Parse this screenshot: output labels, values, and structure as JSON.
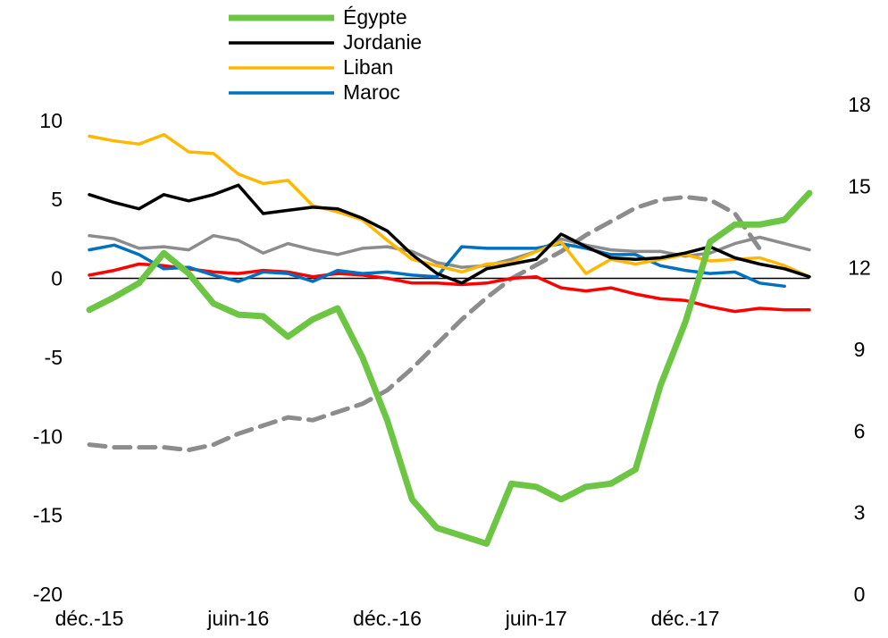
{
  "chart_data": {
    "type": "line",
    "categories": [
      "déc.-15",
      null,
      null,
      null,
      null,
      null,
      "juin-16",
      null,
      null,
      null,
      null,
      null,
      "déc.-16",
      null,
      null,
      null,
      null,
      null,
      "juin-17",
      null,
      null,
      null,
      null,
      null,
      "déc.-17",
      null,
      null,
      null,
      null,
      null
    ],
    "ylim": [
      -20,
      11
    ],
    "yticks": [
      10,
      5,
      0,
      -5,
      -10,
      -15,
      -20
    ],
    "y2lim": [
      0,
      18
    ],
    "y2ticks": [
      18,
      15,
      12,
      9,
      6,
      3,
      0
    ],
    "series": [
      {
        "name": "Égypte",
        "color": "#6cc644",
        "values": [
          -2.0,
          -1.2,
          -0.3,
          1.6,
          0.3,
          -1.6,
          -2.3,
          -2.4,
          -3.7,
          -2.6,
          -1.9,
          -5.0,
          -9.0,
          -14.0,
          -15.8,
          -16.3,
          -16.8,
          -13.0,
          -13.2,
          -14.0,
          -13.2,
          -13.0,
          -12.1,
          -6.8,
          -2.8,
          2.3,
          3.4,
          3.4,
          3.7,
          5.4
        ]
      },
      {
        "name": "Jordanie",
        "color": "#000000",
        "values": [
          5.3,
          4.8,
          4.4,
          5.3,
          4.9,
          5.3,
          5.9,
          4.1,
          4.3,
          4.5,
          4.4,
          3.8,
          3.0,
          1.5,
          0.3,
          -0.3,
          0.6,
          0.9,
          1.2,
          2.8,
          2.0,
          1.3,
          1.2,
          1.3,
          1.6,
          2.0,
          1.3,
          0.9,
          0.6,
          0.1
        ]
      },
      {
        "name": "Liban",
        "color": "#ffb700",
        "values": [
          9.0,
          8.7,
          8.5,
          9.1,
          8.0,
          7.9,
          6.6,
          6.0,
          6.2,
          4.6,
          4.2,
          3.7,
          2.4,
          1.2,
          0.8,
          0.4,
          0.9,
          1.0,
          1.7,
          2.3,
          0.3,
          1.2,
          0.9,
          1.2,
          1.5,
          1.1,
          1.2,
          1.3,
          0.8,
          0.1
        ]
      },
      {
        "name": "Maroc",
        "color": "#0070c0",
        "values": [
          1.8,
          2.1,
          1.5,
          0.6,
          0.7,
          0.2,
          -0.2,
          0.4,
          0.3,
          -0.2,
          0.5,
          0.3,
          0.4,
          0.2,
          0.1,
          2.0,
          1.9,
          1.9,
          1.9,
          2.2,
          1.9,
          1.5,
          1.5,
          0.8,
          0.5,
          0.3,
          0.4,
          -0.3,
          -0.5,
          null
        ]
      },
      {
        "color": "#8c8c8c",
        "values": [
          2.7,
          2.5,
          1.9,
          2.0,
          1.8,
          2.7,
          2.4,
          1.6,
          2.2,
          1.8,
          1.5,
          1.9,
          2.0,
          1.7,
          1.0,
          0.7,
          0.8,
          1.2,
          1.7,
          2.5,
          2.1,
          1.8,
          1.7,
          1.7,
          1.4,
          1.6,
          2.2,
          2.6,
          2.2,
          1.8
        ]
      },
      {
        "color": "#ff0000",
        "values": [
          0.2,
          0.5,
          0.9,
          0.8,
          0.6,
          0.4,
          0.3,
          0.5,
          0.4,
          0.1,
          0.3,
          0.2,
          0.0,
          -0.3,
          -0.3,
          -0.4,
          -0.3,
          0.0,
          0.1,
          -0.6,
          -0.8,
          -0.6,
          -1.0,
          -1.3,
          -1.4,
          -1.8,
          -2.1,
          -1.9,
          -2.0,
          -2.0
        ]
      },
      {
        "color": "#8c8c8c",
        "dashed": true,
        "axis": "y2",
        "values": [
          5.5,
          5.4,
          5.4,
          5.4,
          5.3,
          5.5,
          5.9,
          6.2,
          6.5,
          6.4,
          6.7,
          7.0,
          7.5,
          8.3,
          9.2,
          10.1,
          10.9,
          11.6,
          12.1,
          12.6,
          13.2,
          13.7,
          14.2,
          14.5,
          14.6,
          14.5,
          14.0,
          12.7,
          null,
          null
        ]
      }
    ]
  }
}
